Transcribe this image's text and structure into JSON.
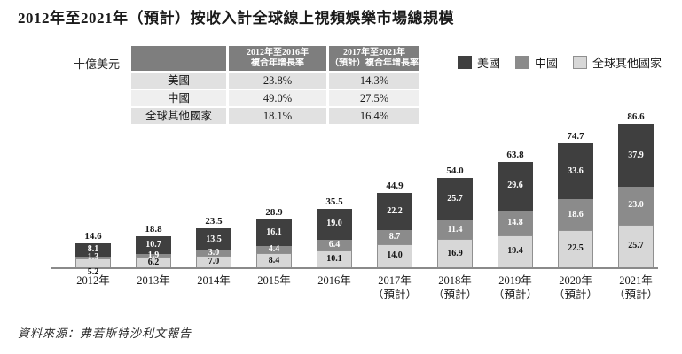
{
  "page": {
    "title": "2012年至2021年（預計）按收入計全球線上視頻娛樂市場總規模",
    "unit_label": "十億美元",
    "source_note": "資料來源：弗若斯特沙利文報告"
  },
  "colors": {
    "us": "#3f3f3f",
    "cn": "#8b8b8b",
    "ot": "#d7d7d7",
    "table_header_bg": "#7e7e7e",
    "table_row_bg": "#e1e1e1",
    "table_row_alt_bg": "#efefef",
    "axis": "#8a8a8a"
  },
  "legend": {
    "items": [
      {
        "id": "us",
        "label": "美國"
      },
      {
        "id": "cn",
        "label": "中國"
      },
      {
        "id": "ot",
        "label": "全球其他國家"
      }
    ]
  },
  "growth_table": {
    "corner": "",
    "col_headers": [
      [
        "2012年至2016年",
        "複合年增長率"
      ],
      [
        "2017年至2021年",
        "（預計）複合年增長率"
      ]
    ],
    "rows": [
      {
        "label": "美國",
        "values": [
          "23.8%",
          "14.3%"
        ]
      },
      {
        "label": "中國",
        "values": [
          "49.0%",
          "27.5%"
        ]
      },
      {
        "label": "全球其他國家",
        "values": [
          "18.1%",
          "16.4%"
        ]
      }
    ]
  },
  "chart_data": {
    "type": "bar",
    "stacked": true,
    "unit": "十億美元",
    "title": "2012年至2021年（預計）按收入計全球線上視頻娛樂市場總規模",
    "grid": false,
    "legend_position": "top-right",
    "ylim": [
      0,
      90
    ],
    "categories": [
      {
        "label": "2012年",
        "sublabel": ""
      },
      {
        "label": "2013年",
        "sublabel": ""
      },
      {
        "label": "2014年",
        "sublabel": ""
      },
      {
        "label": "2015年",
        "sublabel": ""
      },
      {
        "label": "2016年",
        "sublabel": ""
      },
      {
        "label": "2017年",
        "sublabel": "（預計）"
      },
      {
        "label": "2018年",
        "sublabel": "（預計）"
      },
      {
        "label": "2019年",
        "sublabel": "（預計）"
      },
      {
        "label": "2020年",
        "sublabel": "（預計）"
      },
      {
        "label": "2021年",
        "sublabel": "（預計）"
      }
    ],
    "series": [
      {
        "id": "us",
        "name": "美國",
        "values": [
          8.1,
          10.7,
          13.5,
          16.1,
          19.0,
          22.2,
          25.7,
          29.6,
          33.6,
          37.9
        ]
      },
      {
        "id": "cn",
        "name": "中國",
        "values": [
          1.3,
          1.9,
          3.0,
          4.4,
          6.4,
          8.7,
          11.4,
          14.8,
          18.6,
          23.0
        ]
      },
      {
        "id": "ot",
        "name": "全球其他國家",
        "values": [
          5.2,
          6.2,
          7.0,
          8.4,
          10.1,
          14.0,
          16.9,
          19.4,
          22.5,
          25.7
        ]
      }
    ],
    "totals": [
      14.6,
      18.8,
      23.5,
      28.9,
      35.5,
      44.9,
      54.0,
      63.8,
      74.7,
      86.6
    ]
  }
}
